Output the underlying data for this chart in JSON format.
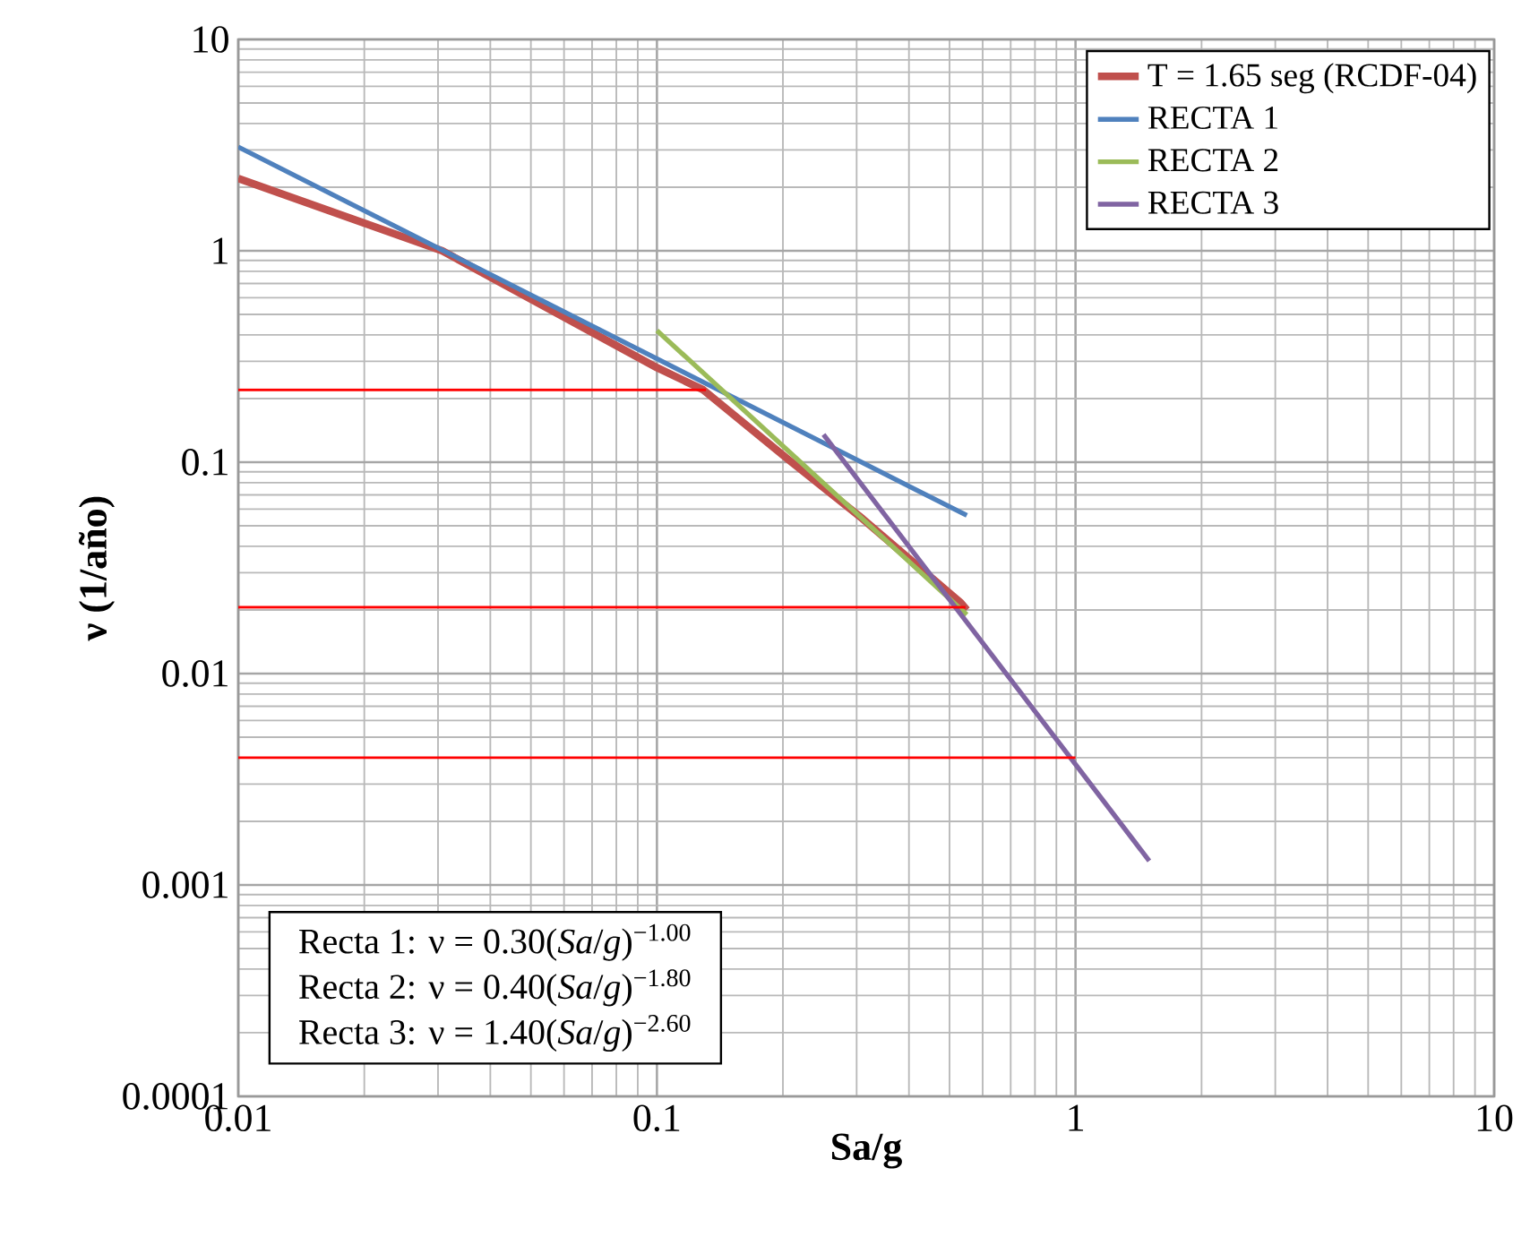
{
  "chart_data": {
    "type": "line",
    "xlabel": "Sa/g",
    "ylabel": "ν (1/año)",
    "log": "xy",
    "grid": true,
    "legend": "top right",
    "marker": "none",
    "line_style": "solid",
    "xlim": [
      0.01,
      10
    ],
    "ylim": [
      0.0001,
      10
    ],
    "xticks": [
      0.01,
      0.1,
      1,
      10
    ],
    "yticks": [
      0.0001,
      0.001,
      0.01,
      0.1,
      1,
      10
    ],
    "series": [
      {
        "name": "T = 1.65 seg (RCDF-04)",
        "color": "#c0504d",
        "x": [
          0.01,
          0.0307,
          0.1,
          0.129,
          0.206,
          0.31,
          0.532,
          0.55
        ],
        "values": [
          2.2,
          1.0,
          0.28,
          0.22,
          0.103,
          0.054,
          0.0216,
          0.02
        ]
      },
      {
        "name": "RECTA 1",
        "color": "#4f81bd",
        "x": [
          0.01,
          0.55
        ],
        "values": [
          3.1,
          0.056
        ]
      },
      {
        "name": "RECTA 2",
        "color": "#9bbb59",
        "x": [
          0.1,
          0.55
        ],
        "values": [
          0.42,
          0.019
        ]
      },
      {
        "name": "RECTA 3",
        "color": "#8064a2",
        "x": [
          0.25,
          1.5
        ],
        "values": [
          0.135,
          0.0013
        ]
      },
      {
        "color": "#ff0000",
        "x": [
          0.01,
          0.131
        ],
        "values": [
          0.22,
          0.22
        ]
      },
      {
        "color": "#ff0000",
        "x": [
          0.01,
          0.546
        ],
        "values": [
          0.0206,
          0.0206
        ]
      },
      {
        "color": "#ff0000",
        "x": [
          0.01,
          1.0
        ],
        "values": [
          0.004,
          0.004
        ]
      }
    ],
    "annotations": [
      "Recta 1: ν = 0.30(*Sa*/*g*)$^{−1.00}$",
      "Recta 2: ν = 0.40(*Sa*/*g*)$^{−1.80}$",
      "Recta 3: ν = 1.40(*Sa*/*g*)$^{−2.60}$"
    ]
  }
}
